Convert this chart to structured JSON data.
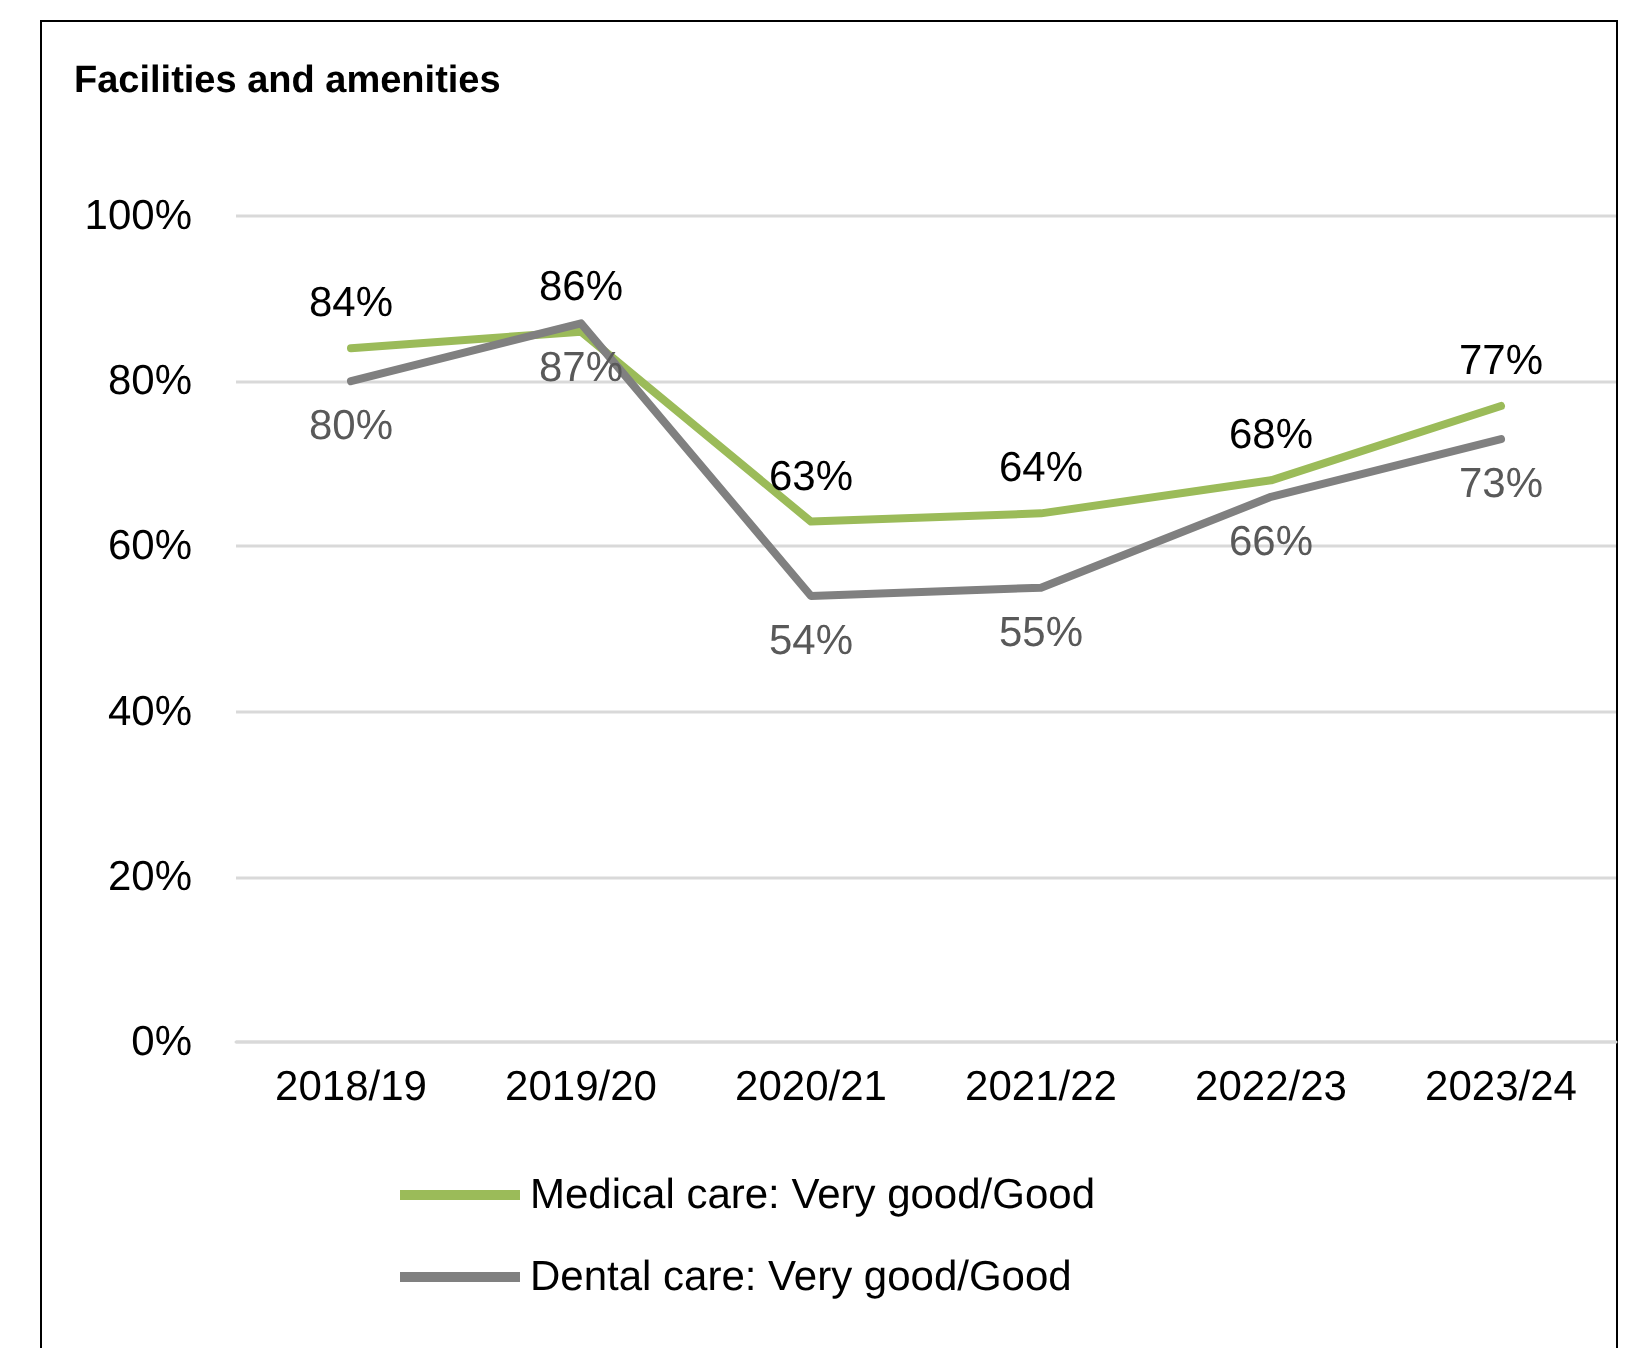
{
  "chart_data": {
    "type": "line",
    "title": "Facilities and amenities",
    "categories": [
      "2018/19",
      "2019/20",
      "2020/21",
      "2021/22",
      "2022/23",
      "2023/24"
    ],
    "series": [
      {
        "name": "Medical care: Very good/Good",
        "color": "#9bbb59",
        "values": [
          84,
          86,
          63,
          64,
          68,
          77
        ],
        "value_labels": [
          "84%",
          "86%",
          "63%",
          "64%",
          "68%",
          "77%"
        ]
      },
      {
        "name": "Dental care: Very good/Good",
        "color": "#808080",
        "values": [
          80,
          87,
          54,
          55,
          66,
          73
        ],
        "value_labels": [
          "80%",
          "87%",
          "54%",
          "55%",
          "66%",
          "73%"
        ]
      }
    ],
    "ylim": [
      0,
      100
    ],
    "yticks": [
      {
        "value": 0,
        "label": "0%"
      },
      {
        "value": 20,
        "label": "20%"
      },
      {
        "value": 40,
        "label": "40%"
      },
      {
        "value": 60,
        "label": "60%"
      },
      {
        "value": 80,
        "label": "80%"
      },
      {
        "value": 100,
        "label": "100%"
      }
    ],
    "grid": "y",
    "legend": "bottom",
    "marker": "none",
    "line_style": "solid"
  }
}
